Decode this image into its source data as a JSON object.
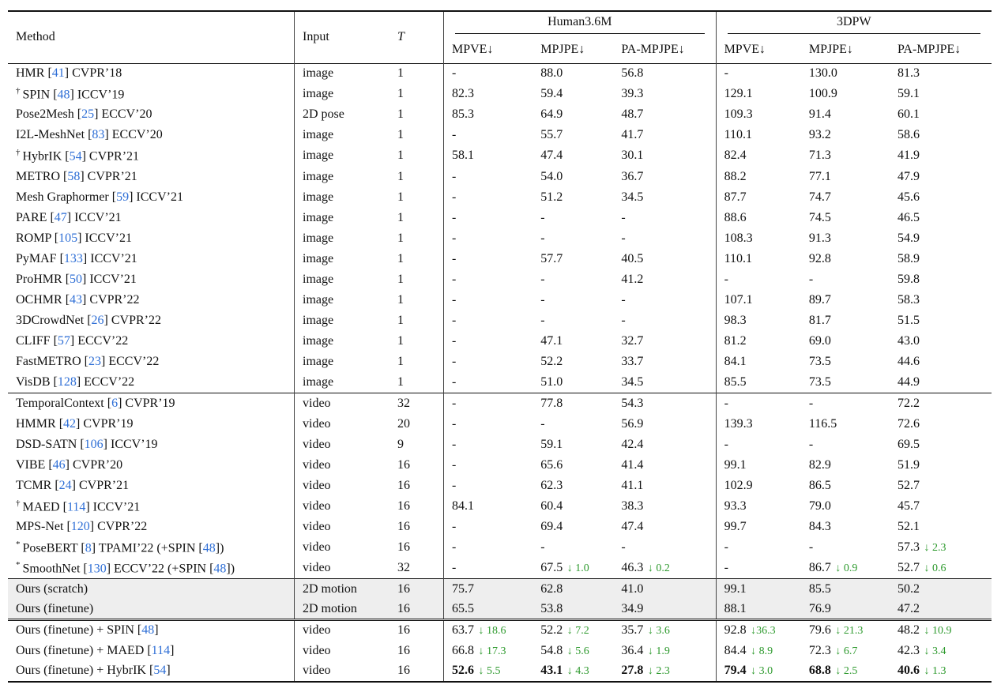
{
  "header": {
    "method": "Method",
    "input": "Input",
    "t": "T",
    "group_h36m": "Human3.6M",
    "group_3dpw": "3DPW",
    "cols": [
      "MPVE↓",
      "MPJPE↓",
      "PA-MPJPE↓",
      "MPVE↓",
      "MPJPE↓",
      "PA-MPJPE↓"
    ]
  },
  "rows": [
    {
      "mark": "",
      "name": "HMR",
      "ref": "41",
      "venue": "CVPR’18",
      "input": "image",
      "t": "1",
      "vals": [
        [
          "-"
        ],
        [
          "88.0"
        ],
        [
          "56.8"
        ],
        [
          "-"
        ],
        [
          "130.0"
        ],
        [
          "81.3"
        ]
      ]
    },
    {
      "mark": "†",
      "name": "SPIN",
      "ref": "48",
      "venue": "ICCV’19",
      "input": "image",
      "t": "1",
      "vals": [
        [
          "82.3"
        ],
        [
          "59.4"
        ],
        [
          "39.3"
        ],
        [
          "129.1"
        ],
        [
          "100.9"
        ],
        [
          "59.1"
        ]
      ]
    },
    {
      "mark": "",
      "name": "Pose2Mesh",
      "ref": "25",
      "venue": "ECCV’20",
      "input": "2D pose",
      "t": "1",
      "vals": [
        [
          "85.3"
        ],
        [
          "64.9"
        ],
        [
          "48.7"
        ],
        [
          "109.3"
        ],
        [
          "91.4"
        ],
        [
          "60.1"
        ]
      ]
    },
    {
      "mark": "",
      "name": "I2L-MeshNet",
      "ref": "83",
      "venue": "ECCV’20",
      "input": "image",
      "t": "1",
      "vals": [
        [
          "-"
        ],
        [
          "55.7"
        ],
        [
          "41.7"
        ],
        [
          "110.1"
        ],
        [
          "93.2"
        ],
        [
          "58.6"
        ]
      ]
    },
    {
      "mark": "†",
      "name": "HybrIK",
      "ref": "54",
      "venue": "CVPR’21",
      "input": "image",
      "t": "1",
      "vals": [
        [
          "58.1"
        ],
        [
          "47.4"
        ],
        [
          "30.1"
        ],
        [
          "82.4"
        ],
        [
          "71.3"
        ],
        [
          "41.9"
        ]
      ]
    },
    {
      "mark": "",
      "name": "METRO",
      "ref": "58",
      "venue": "CVPR’21",
      "input": "image",
      "t": "1",
      "vals": [
        [
          "-"
        ],
        [
          "54.0"
        ],
        [
          "36.7"
        ],
        [
          "88.2"
        ],
        [
          "77.1"
        ],
        [
          "47.9"
        ]
      ]
    },
    {
      "mark": "",
      "name": "Mesh Graphormer",
      "ref": "59",
      "venue": "ICCV’21",
      "input": "image",
      "t": "1",
      "vals": [
        [
          "-"
        ],
        [
          "51.2"
        ],
        [
          "34.5"
        ],
        [
          "87.7"
        ],
        [
          "74.7"
        ],
        [
          "45.6"
        ]
      ]
    },
    {
      "mark": "",
      "name": "PARE",
      "ref": "47",
      "venue": "ICCV’21",
      "input": "image",
      "t": "1",
      "vals": [
        [
          "-"
        ],
        [
          "-"
        ],
        [
          "-"
        ],
        [
          "88.6"
        ],
        [
          "74.5"
        ],
        [
          "46.5"
        ]
      ]
    },
    {
      "mark": "",
      "name": "ROMP",
      "ref": "105",
      "venue": "ICCV’21",
      "input": "image",
      "t": "1",
      "vals": [
        [
          "-"
        ],
        [
          "-"
        ],
        [
          "-"
        ],
        [
          "108.3"
        ],
        [
          "91.3"
        ],
        [
          "54.9"
        ]
      ]
    },
    {
      "mark": "",
      "name": "PyMAF",
      "ref": "133",
      "venue": "ICCV’21",
      "input": "image",
      "t": "1",
      "vals": [
        [
          "-"
        ],
        [
          "57.7"
        ],
        [
          "40.5"
        ],
        [
          "110.1"
        ],
        [
          "92.8"
        ],
        [
          "58.9"
        ]
      ]
    },
    {
      "mark": "",
      "name": "ProHMR",
      "ref": "50",
      "venue": "ICCV’21",
      "input": "image",
      "t": "1",
      "vals": [
        [
          "-"
        ],
        [
          "-"
        ],
        [
          "41.2"
        ],
        [
          "-"
        ],
        [
          "-"
        ],
        [
          "59.8"
        ]
      ]
    },
    {
      "mark": "",
      "name": "OCHMR",
      "ref": "43",
      "venue": "CVPR’22",
      "input": "image",
      "t": "1",
      "vals": [
        [
          "-"
        ],
        [
          "-"
        ],
        [
          "-"
        ],
        [
          "107.1"
        ],
        [
          "89.7"
        ],
        [
          "58.3"
        ]
      ]
    },
    {
      "mark": "",
      "name": "3DCrowdNet",
      "ref": "26",
      "venue": "CVPR’22",
      "input": "image",
      "t": "1",
      "vals": [
        [
          "-"
        ],
        [
          "-"
        ],
        [
          "-"
        ],
        [
          "98.3"
        ],
        [
          "81.7"
        ],
        [
          "51.5"
        ]
      ]
    },
    {
      "mark": "",
      "name": "CLIFF",
      "ref": "57",
      "venue": "ECCV’22",
      "input": "image",
      "t": "1",
      "vals": [
        [
          "-"
        ],
        [
          "47.1"
        ],
        [
          "32.7"
        ],
        [
          "81.2"
        ],
        [
          "69.0"
        ],
        [
          "43.0"
        ]
      ]
    },
    {
      "mark": "",
      "name": "FastMETRO",
      "ref": "23",
      "venue": "ECCV’22",
      "input": "image",
      "t": "1",
      "vals": [
        [
          "-"
        ],
        [
          "52.2"
        ],
        [
          "33.7"
        ],
        [
          "84.1"
        ],
        [
          "73.5"
        ],
        [
          "44.6"
        ]
      ]
    },
    {
      "mark": "",
      "name": "VisDB",
      "ref": "128",
      "venue": "ECCV’22",
      "input": "image",
      "t": "1",
      "vals": [
        [
          "-"
        ],
        [
          "51.0"
        ],
        [
          "34.5"
        ],
        [
          "85.5"
        ],
        [
          "73.5"
        ],
        [
          "44.9"
        ]
      ]
    },
    {
      "mark": "",
      "name": "TemporalContext",
      "ref": "6",
      "venue": "CVPR’19",
      "input": "video",
      "t": "32",
      "rule": "mid",
      "vals": [
        [
          "-"
        ],
        [
          "77.8"
        ],
        [
          "54.3"
        ],
        [
          "-"
        ],
        [
          "-"
        ],
        [
          "72.2"
        ]
      ]
    },
    {
      "mark": "",
      "name": "HMMR",
      "ref": "42",
      "venue": "CVPR’19",
      "input": "video",
      "t": "20",
      "vals": [
        [
          "-"
        ],
        [
          "-"
        ],
        [
          "56.9"
        ],
        [
          "139.3"
        ],
        [
          "116.5"
        ],
        [
          "72.6"
        ]
      ]
    },
    {
      "mark": "",
      "name": "DSD-SATN",
      "ref": "106",
      "venue": "ICCV’19",
      "input": "video",
      "t": "9",
      "vals": [
        [
          "-"
        ],
        [
          "59.1"
        ],
        [
          "42.4"
        ],
        [
          "-"
        ],
        [
          "-"
        ],
        [
          "69.5"
        ]
      ]
    },
    {
      "mark": "",
      "name": "VIBE",
      "ref": "46",
      "venue": "CVPR’20",
      "input": "video",
      "t": "16",
      "vals": [
        [
          "-"
        ],
        [
          "65.6"
        ],
        [
          "41.4"
        ],
        [
          "99.1"
        ],
        [
          "82.9"
        ],
        [
          "51.9"
        ]
      ]
    },
    {
      "mark": "",
      "name": "TCMR",
      "ref": "24",
      "venue": "CVPR’21",
      "input": "video",
      "t": "16",
      "vals": [
        [
          "-"
        ],
        [
          "62.3"
        ],
        [
          "41.1"
        ],
        [
          "102.9"
        ],
        [
          "86.5"
        ],
        [
          "52.7"
        ]
      ]
    },
    {
      "mark": "†",
      "name": "MAED",
      "ref": "114",
      "venue": "ICCV’21",
      "input": "video",
      "t": "16",
      "vals": [
        [
          "84.1"
        ],
        [
          "60.4"
        ],
        [
          "38.3"
        ],
        [
          "93.3"
        ],
        [
          "79.0"
        ],
        [
          "45.7"
        ]
      ]
    },
    {
      "mark": "",
      "name": "MPS-Net",
      "ref": "120",
      "venue": "CVPR’22",
      "input": "video",
      "t": "16",
      "vals": [
        [
          "-"
        ],
        [
          "69.4"
        ],
        [
          "47.4"
        ],
        [
          "99.7"
        ],
        [
          "84.3"
        ],
        [
          "52.1"
        ]
      ]
    },
    {
      "mark": "*",
      "name": "PoseBERT",
      "ref": "8",
      "venue": "TPAMI’22 (+SPIN",
      "ref2": "48",
      "tail": ")",
      "input": "video",
      "t": "16",
      "vals": [
        [
          "-"
        ],
        [
          "-"
        ],
        [
          "-"
        ],
        [
          "-"
        ],
        [
          "-"
        ],
        [
          "57.3",
          "↓ 2.3"
        ]
      ]
    },
    {
      "mark": "*",
      "name": "SmoothNet",
      "ref": "130",
      "venue": "ECCV’22 (+SPIN",
      "ref2": "48",
      "tail": ")",
      "input": "video",
      "t": "32",
      "vals": [
        [
          "-"
        ],
        [
          "67.5",
          "↓ 1.0"
        ],
        [
          "46.3",
          "↓ 0.2"
        ],
        [
          "-"
        ],
        [
          "86.7",
          "↓ 0.9"
        ],
        [
          "52.7",
          "↓ 0.6"
        ]
      ]
    },
    {
      "mark": "",
      "name": "Ours (scratch)",
      "ref": "",
      "venue": "",
      "input": "2D motion",
      "t": "16",
      "rule": "mid",
      "gray": true,
      "vals": [
        [
          "75.7"
        ],
        [
          "62.8"
        ],
        [
          "41.0"
        ],
        [
          "99.1"
        ],
        [
          "85.5"
        ],
        [
          "50.2"
        ]
      ]
    },
    {
      "mark": "",
      "name": "Ours (finetune)",
      "ref": "",
      "venue": "",
      "input": "2D motion",
      "t": "16",
      "gray": true,
      "vals": [
        [
          "65.5"
        ],
        [
          "53.8"
        ],
        [
          "34.9"
        ],
        [
          "88.1"
        ],
        [
          "76.9"
        ],
        [
          "47.2"
        ]
      ]
    },
    {
      "mark": "",
      "name": "Ours (finetune) + SPIN",
      "ref": "48",
      "venue": "",
      "input": "video",
      "t": "16",
      "rule": "dbl",
      "vals": [
        [
          "63.7",
          "↓ 18.6"
        ],
        [
          "52.2",
          "↓ 7.2"
        ],
        [
          "35.7",
          "↓ 3.6"
        ],
        [
          "92.8",
          "↓36.3"
        ],
        [
          "79.6",
          "↓ 21.3"
        ],
        [
          "48.2",
          "↓ 10.9"
        ]
      ]
    },
    {
      "mark": "",
      "name": "Ours (finetune) + MAED",
      "ref": "114",
      "venue": "",
      "input": "video",
      "t": "16",
      "vals": [
        [
          "66.8",
          "↓ 17.3"
        ],
        [
          "54.8",
          "↓ 5.6"
        ],
        [
          "36.4",
          "↓ 1.9"
        ],
        [
          "84.4",
          "↓ 8.9"
        ],
        [
          "72.3",
          "↓ 6.7"
        ],
        [
          "42.3",
          "↓ 3.4"
        ]
      ]
    },
    {
      "mark": "",
      "name": "Ours (finetune) + HybrIK",
      "ref": "54",
      "venue": "",
      "input": "video",
      "t": "16",
      "last": true,
      "bold": true,
      "vals": [
        [
          "52.6",
          "↓ 5.5"
        ],
        [
          "43.1",
          "↓ 4.3"
        ],
        [
          "27.8",
          "↓ 2.3"
        ],
        [
          "79.4",
          "↓ 3.0"
        ],
        [
          "68.8",
          "↓ 2.5"
        ],
        [
          "40.6",
          "↓ 1.3"
        ]
      ]
    }
  ],
  "colors": {
    "ref": "#2f6fd6",
    "decrease": "#2e9a2e",
    "highlight_bg": "#eeeeee"
  }
}
